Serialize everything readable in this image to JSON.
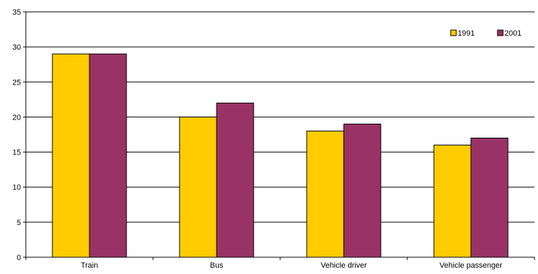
{
  "chart_data": {
    "type": "bar",
    "categories": [
      "Train",
      "Bus",
      "Vehicle driver",
      "Vehicle passenger"
    ],
    "series": [
      {
        "name": "1991",
        "values": [
          29,
          20,
          18,
          16
        ],
        "color": "#FFCC00"
      },
      {
        "name": "2001",
        "values": [
          29,
          22,
          19,
          17
        ],
        "color": "#993366"
      }
    ],
    "title": "",
    "xlabel": "",
    "ylabel": "",
    "ylim": [
      0,
      35
    ],
    "yticks": [
      0,
      5,
      10,
      15,
      20,
      25,
      30,
      35
    ],
    "grid": true,
    "legend_position": "top-right"
  }
}
